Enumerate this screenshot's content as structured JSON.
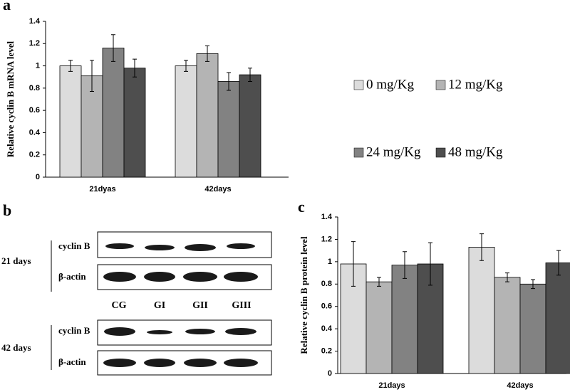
{
  "chart_data": [
    {
      "type": "bar",
      "label": "a",
      "ylabel": "Relative cyclin B mRNA level",
      "categories": [
        "21dyas",
        "42days"
      ],
      "series": [
        {
          "name": "0 mg/Kg",
          "color": "#dcdcdc",
          "values": [
            1.0,
            1.0
          ],
          "errors": [
            0.05,
            0.05
          ]
        },
        {
          "name": "12 mg/Kg",
          "color": "#b4b4b4",
          "values": [
            0.91,
            1.11
          ],
          "errors": [
            0.14,
            0.07
          ]
        },
        {
          "name": "24 mg/Kg",
          "color": "#828282",
          "values": [
            1.16,
            0.86
          ],
          "errors": [
            0.12,
            0.08
          ]
        },
        {
          "name": "48 mg/Kg",
          "color": "#4e4e4e",
          "values": [
            0.98,
            0.92
          ],
          "errors": [
            0.08,
            0.06
          ]
        }
      ],
      "ylim": [
        0,
        1.4
      ],
      "yticks": [
        0,
        0.2,
        0.4,
        0.6,
        0.8,
        1,
        1.2,
        1.4
      ],
      "legend": true
    },
    {
      "type": "bar",
      "label": "c",
      "ylabel": "Relative cyclin B protein level",
      "categories": [
        "21days",
        "42days"
      ],
      "series": [
        {
          "name": "0 mg/Kg",
          "color": "#dcdcdc",
          "values": [
            0.98,
            1.13
          ],
          "errors": [
            0.2,
            0.12
          ]
        },
        {
          "name": "12 mg/Kg",
          "color": "#b4b4b4",
          "values": [
            0.82,
            0.86
          ],
          "errors": [
            0.04,
            0.04
          ]
        },
        {
          "name": "24 mg/Kg",
          "color": "#828282",
          "values": [
            0.97,
            0.8
          ],
          "errors": [
            0.12,
            0.04
          ]
        },
        {
          "name": "48 mg/Kg",
          "color": "#4e4e4e",
          "values": [
            0.98,
            0.99
          ],
          "errors": [
            0.19,
            0.11
          ]
        }
      ],
      "ylim": [
        0,
        1.4
      ],
      "yticks": [
        0,
        0.2,
        0.4,
        0.6,
        0.8,
        1,
        1.2,
        1.4
      ],
      "legend": false
    }
  ],
  "blot": {
    "label": "b",
    "groups": [
      "21 days",
      "42 days"
    ],
    "rows": [
      "cyclin B",
      "β-actin"
    ],
    "lanes": [
      "CG",
      "GI",
      "GII",
      "GIII"
    ]
  }
}
